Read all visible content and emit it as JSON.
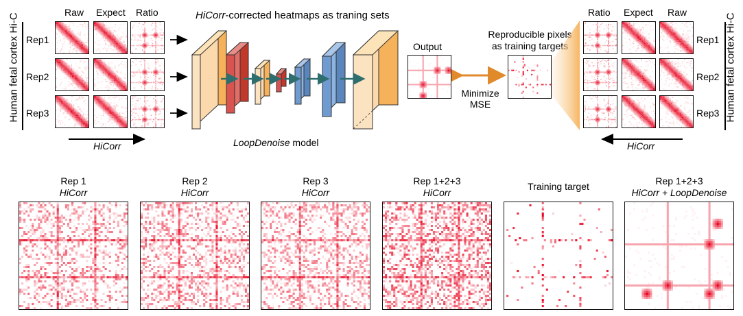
{
  "top": {
    "left_side_label": "Human fetal cortex Hi-C",
    "right_side_label": "Human fetal cortex Hi-C",
    "left_columns": [
      "Raw",
      "Expect",
      "Ratio"
    ],
    "right_columns": [
      "Ratio",
      "Expect",
      "Raw"
    ],
    "rows": [
      "Rep1",
      "Rep2",
      "Rep3"
    ],
    "left_arrow_label": "HiCorr",
    "right_arrow_label": "HiCorr",
    "title_italic": "HiCorr",
    "title_rest": "-corrected heatmaps as traning sets",
    "model_italic": "LoopDenoise",
    "model_rest": " model",
    "output_label": "Output",
    "minimize_line1": "Minimize",
    "minimize_line2": "MSE",
    "targets_line1": "Reproducible pixels",
    "targets_line2": "as training targets"
  },
  "bottom": {
    "panels": [
      {
        "line1": "Rep 1",
        "line2": "HiCorr"
      },
      {
        "line1": "Rep 2",
        "line2": "HiCorr"
      },
      {
        "line1": "Rep 3",
        "line2": "HiCorr"
      },
      {
        "line1": "Rep 1+2+3",
        "line2": "HiCorr"
      },
      {
        "line1": "Training target",
        "line2": ""
      },
      {
        "line1": "Rep 1+2+3",
        "line2": "HiCorr + LoopDenoise"
      }
    ]
  },
  "colors": {
    "heat": "#e8001c",
    "orange": "#f6b25a",
    "orange_light": "#fde3b8",
    "red_layer": "#d9534f",
    "blue_layer": "#6f9bd1",
    "arrow_orange": "#e08a2c",
    "teal_arrow": "#2f6e6e"
  }
}
